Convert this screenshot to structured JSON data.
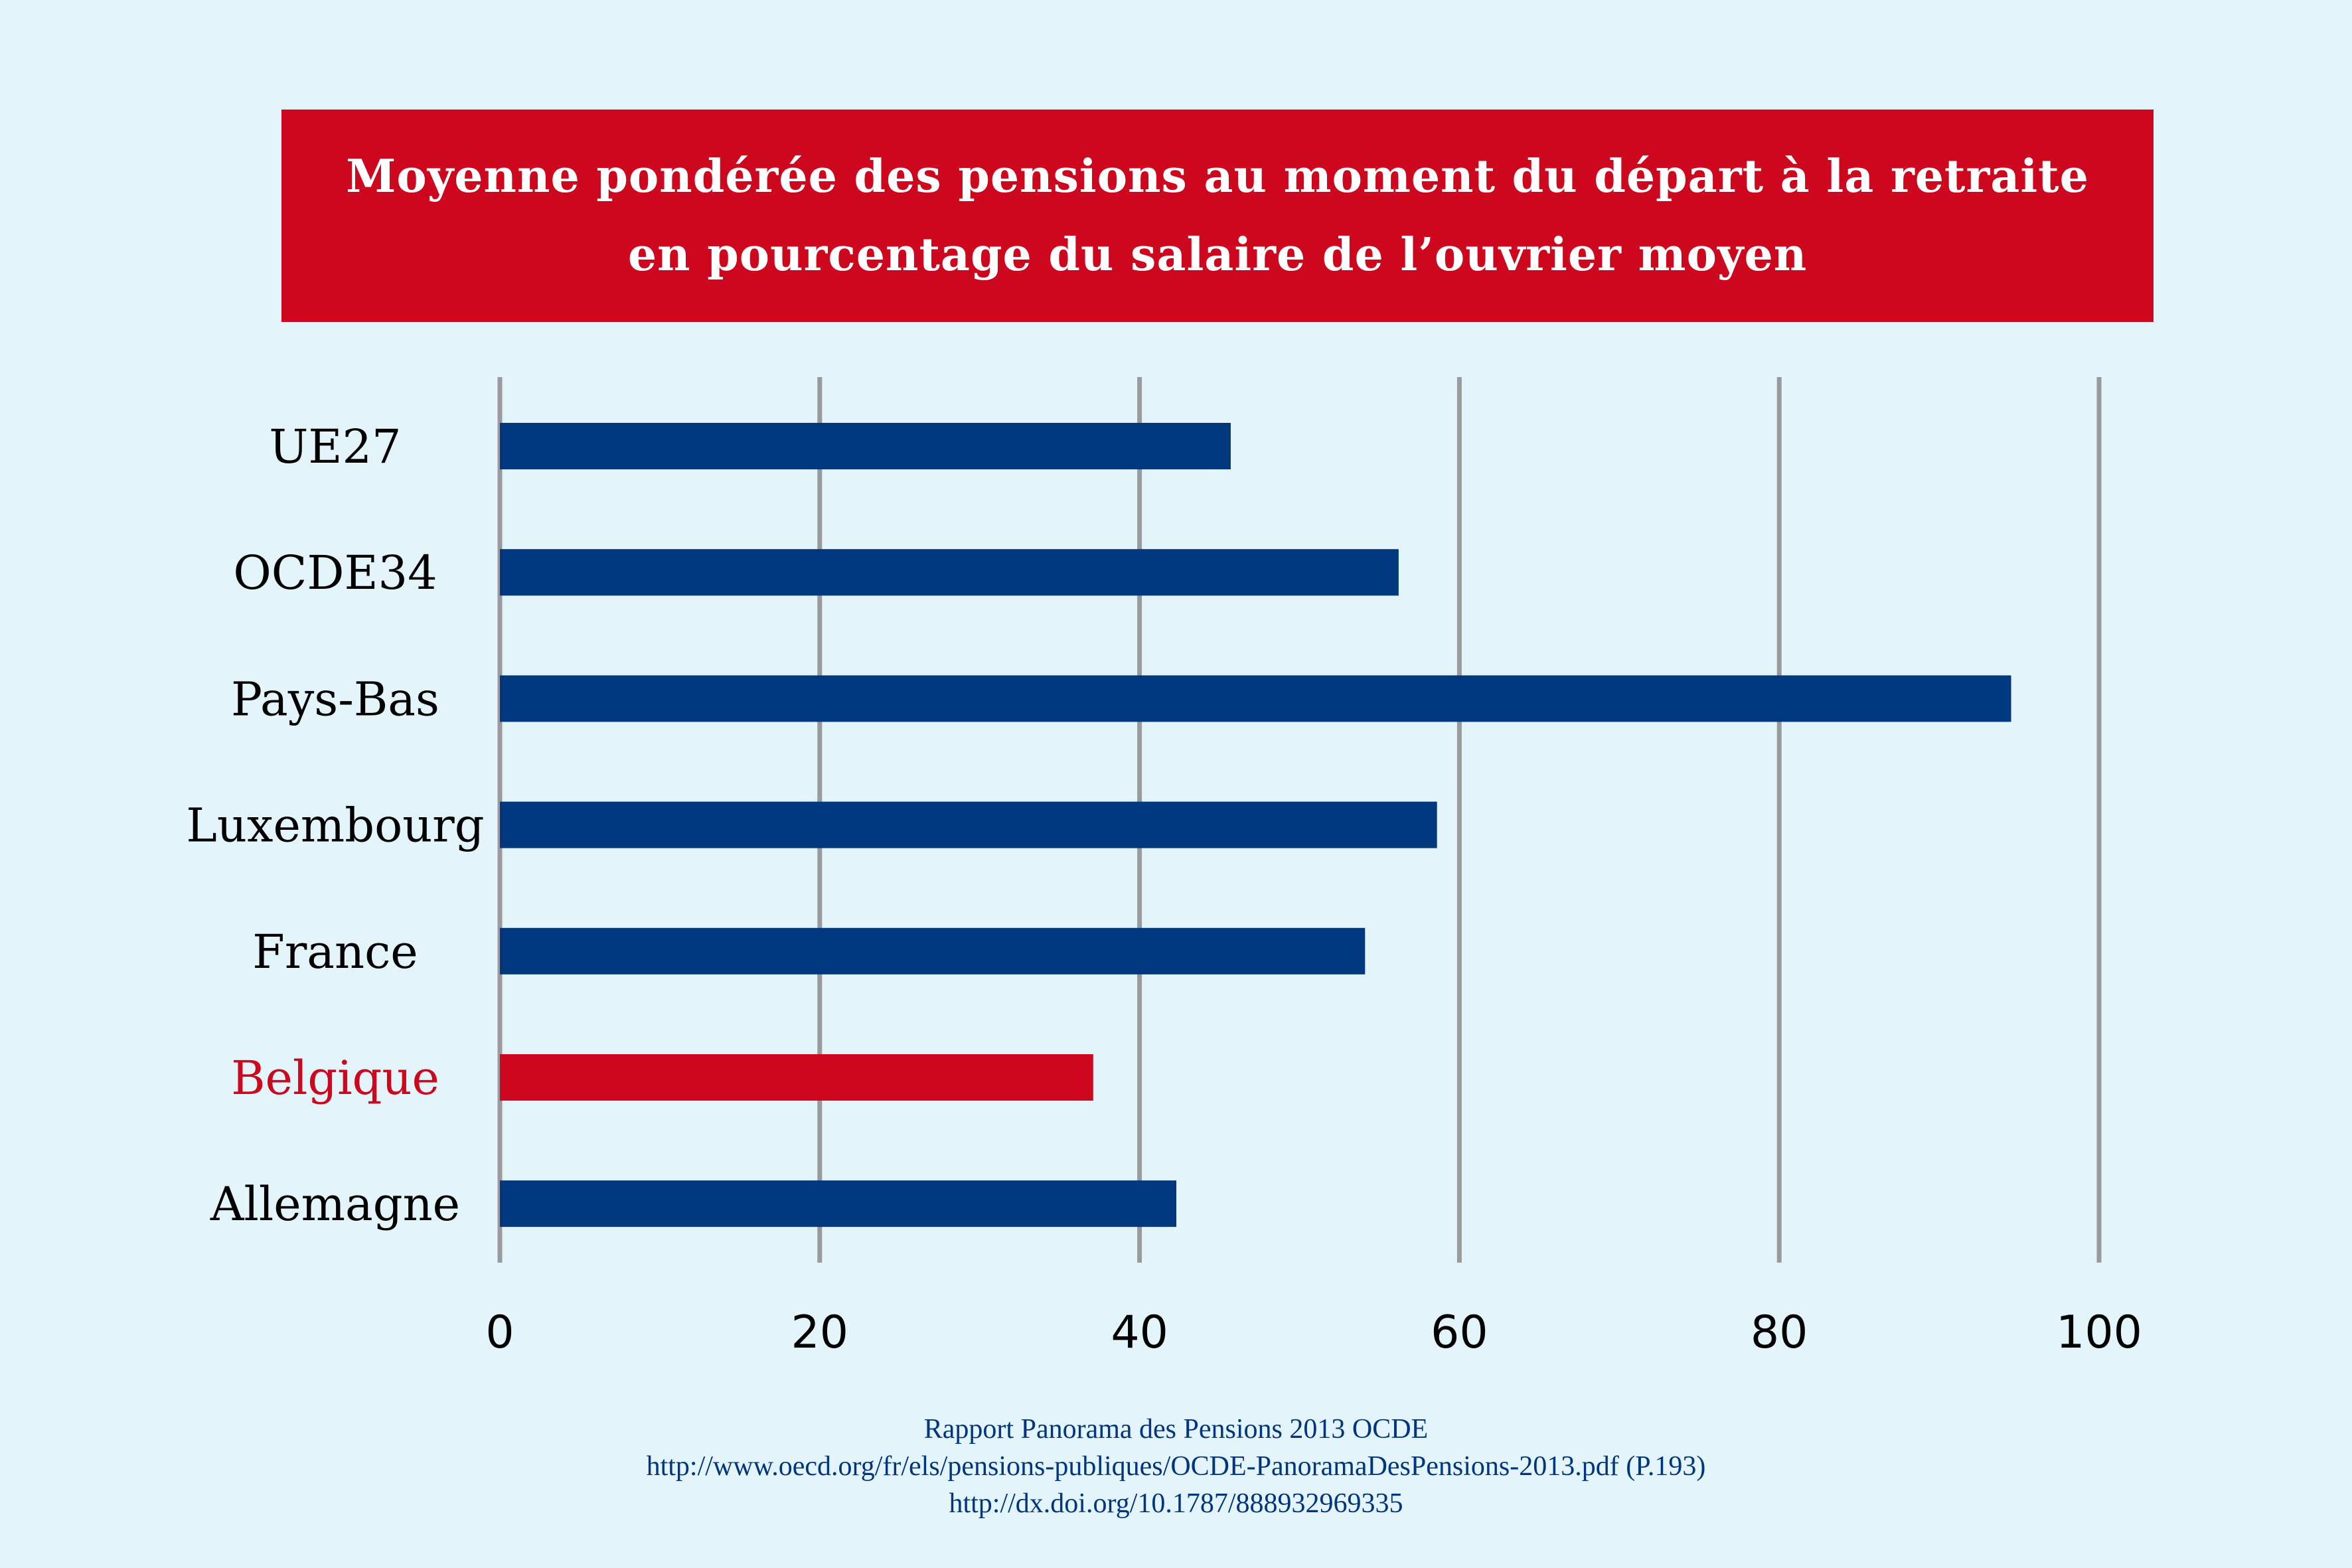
{
  "colors": {
    "background": "#e3f4fb",
    "title_bg": "#cc071e",
    "bar_default": "#003880",
    "bar_highlight": "#cc071e",
    "label_default": "#000000",
    "label_highlight": "#cc071e",
    "grid": "#989a9c",
    "footer_text": "#003580"
  },
  "title": {
    "line1": "Moyenne pondérée des pensions au moment du départ à la retraite",
    "line2": "en pourcentage du salaire de l’ouvrier moyen"
  },
  "footer": {
    "line1": "Rapport Panorama des Pensions 2013 OCDE",
    "line2": "http://www.oecd.org/fr/els/pensions-publiques/OCDE-PanoramaDesPensions-2013.pdf (P.193)",
    "line3": "http://dx.doi.org/10.1787/888932969335"
  },
  "chart_data": {
    "type": "bar",
    "orientation": "horizontal",
    "title": "Moyenne pondérée des pensions au moment du départ à la retraite en pourcentage du salaire de l’ouvrier moyen",
    "xlabel": "",
    "ylabel": "",
    "categories": [
      "UE27",
      "OCDE34",
      "Pays-Bas",
      "Luxembourg",
      "France",
      "Belgique",
      "Allemagne"
    ],
    "values": [
      45.7,
      56.2,
      94.5,
      58.6,
      54.1,
      37.1,
      42.3
    ],
    "highlight": [
      "Belgique"
    ],
    "xlim": [
      0,
      100
    ],
    "xticks": [
      0,
      20,
      40,
      60,
      80,
      100
    ],
    "xtick_labels": [
      "0",
      "20",
      "40",
      "60",
      "80",
      "100"
    ],
    "grid": "vertical",
    "legend": "none"
  }
}
